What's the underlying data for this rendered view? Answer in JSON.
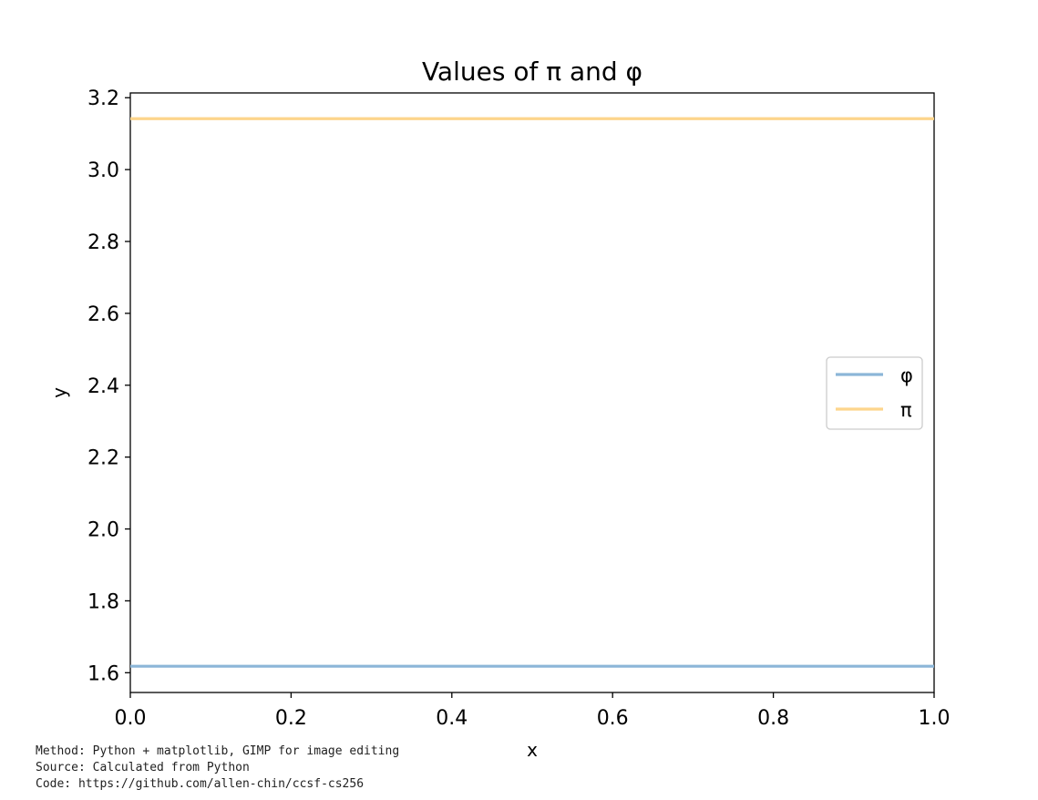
{
  "chart_data": {
    "type": "line",
    "title": "Values of π and φ",
    "xlabel": "x",
    "ylabel": "y",
    "xlim": [
      0.0,
      1.0
    ],
    "ylim": [
      1.545,
      3.2133
    ],
    "x_ticks": [
      "0.0",
      "0.2",
      "0.4",
      "0.6",
      "0.8",
      "1.0"
    ],
    "y_ticks": [
      "1.6",
      "1.8",
      "2.0",
      "2.2",
      "2.4",
      "2.6",
      "2.8",
      "3.0",
      "3.2"
    ],
    "series": [
      {
        "name": "φ",
        "x": [
          0.0,
          1.0
        ],
        "y": [
          1.618,
          1.618
        ],
        "color": "#8cb6d8"
      },
      {
        "name": "π",
        "x": [
          0.0,
          1.0
        ],
        "y": [
          3.1416,
          3.1416
        ],
        "color": "#fdd58c"
      }
    ],
    "legend_position": "center-right",
    "grid": false
  },
  "footer": {
    "method": "Method: Python + matplotlib, GIMP for image editing",
    "source": "Source: Calculated from Python",
    "code": "Code: https://github.com/allen-chin/ccsf-cs256"
  }
}
